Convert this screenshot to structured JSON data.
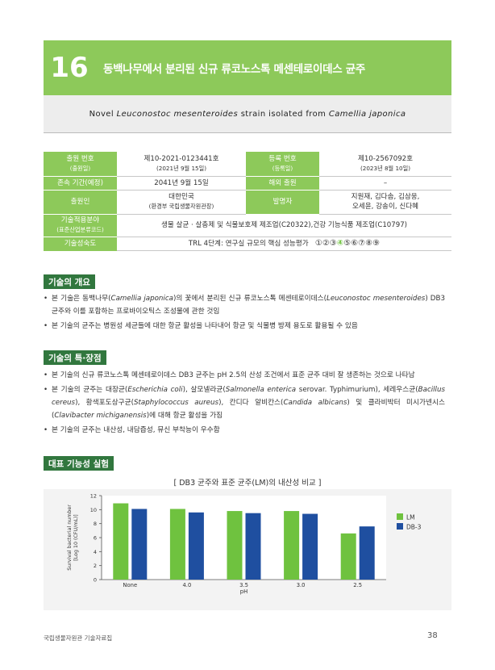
{
  "header": {
    "number": "16",
    "title": "동백나무에서 분리된 신규 류코노스톡 메센테로이데스 균주"
  },
  "subtitle": {
    "part1": "Novel ",
    "part2": "Leuconostoc mesenteroides",
    "part3": " strain isolated from ",
    "part4": "Camellia japonica"
  },
  "info_table": {
    "app_no_label": "출원 번호",
    "app_no_label_sub": "(출원일)",
    "app_no": "제10-2021-0123441호",
    "app_date": "(2021년 9월 15일)",
    "reg_no_label": "등록 번호",
    "reg_no_label_sub": "(등록일)",
    "reg_no": "제10-2567092호",
    "reg_date": "(2023년 8월 10일)",
    "period_label": "존속 기간(예정)",
    "period": "2041년 9월 15일",
    "overseas_label": "해외 출원",
    "overseas": "–",
    "applicant_label": "출원인",
    "applicant": "대한민국",
    "applicant_sub": "(환경부 국립생물자원관장)",
    "inventor_label": "발명자",
    "inventor_line1": "지원재, 김다솜, 김삼웅,",
    "inventor_line2": "오세윤, 강송이, 신다혜",
    "field_label": "기술적용분야",
    "field_label_sub": "(표준산업분류코드)",
    "field": "생물 살균 · 살충제 및 식물보호제 제조업(C20322),건강 기능식품 제조업(C10797)",
    "maturity_label": "기술성숙도",
    "maturity_text": "TRL 4단계: 연구실 규모의 핵심 성능평가",
    "trl_levels": [
      "①",
      "②",
      "③",
      "④",
      "⑤",
      "⑥",
      "⑦",
      "⑧",
      "⑨"
    ],
    "trl_active": "④"
  },
  "overview": {
    "title": "기술의 개요",
    "b1_a": "본 기술은 동백나무(",
    "b1_b": "Camellia japonica",
    "b1_c": ")의 꽃에서 분리된 신규 류코노스톡 메센테로이데스(",
    "b1_d": "Leuconostoc mesenteroides",
    "b1_e": ") DB3 균주와 이를 포함하는 프로바이오틱스 조성물에 관한 것임",
    "b2": "본 기술의 균주는 병원성 세균들에 대한 항균 활성을 나타내어 항균 및 식물병 방제 용도로 활용될 수 있음"
  },
  "features": {
    "title": "기술의 특·장점",
    "f1": "본 기술의 신규 류코노스톡 메센테로이데스 DB3 균주는 pH 2.5의 산성 조건에서 표준 균주 대비 잘 생존하는 것으로 나타남",
    "f2_a": "본 기술의 균주는 대장균(",
    "f2_b": "Escherichia coli",
    "f2_c": "), 살모넬라균(",
    "f2_d": "Salmonella enterica",
    "f2_e": " serovar. Typhimurium), 세레우스균(",
    "f2_f": "Bacillus cereus",
    "f2_g": "), 황색포도상구균(",
    "f2_h": "Staphylococcus aureus",
    "f2_i": "), 칸디다 알비칸스(",
    "f2_j": "Candida albicans",
    "f2_k": ") 및 클라비박터 미시가넨시스(",
    "f2_l": "Clavibacter michiganensis",
    "f2_m": ")에 대해 항균 활성을 가짐",
    "f3": "본 기술의 균주는 내산성, 내담즙성, 뮤신 부착능이 우수함"
  },
  "experiment": {
    "title": "대표 기능성 실험",
    "chart_title": "[ DB3 균주와 표준 균주(LM)의 내산성 비교 ]"
  },
  "colors": {
    "lm": "#6fc23f",
    "db3": "#1f4fa0",
    "header": "#8dc95a",
    "section": "#31773e"
  },
  "chart_data": {
    "type": "bar",
    "title": "DB3 균주와 표준 균주(LM)의 내산성 비교",
    "categories": [
      "None",
      "4.0",
      "3.5",
      "3.0",
      "2.5"
    ],
    "xlabel": "pH",
    "ylabel": "Survival bacterial number [Log 10 (CFU/mL)]",
    "ylim": [
      0,
      12
    ],
    "yticks": [
      0,
      2,
      4,
      6,
      8,
      10,
      12
    ],
    "legend": "right",
    "series": [
      {
        "name": "LM",
        "values": [
          10.9,
          10.1,
          9.8,
          9.8,
          6.6
        ]
      },
      {
        "name": "DB-3",
        "values": [
          10.1,
          9.6,
          9.5,
          9.4,
          7.6
        ]
      }
    ]
  },
  "footer": {
    "left": "국립생물자원관 기술자료집",
    "page": "38"
  }
}
